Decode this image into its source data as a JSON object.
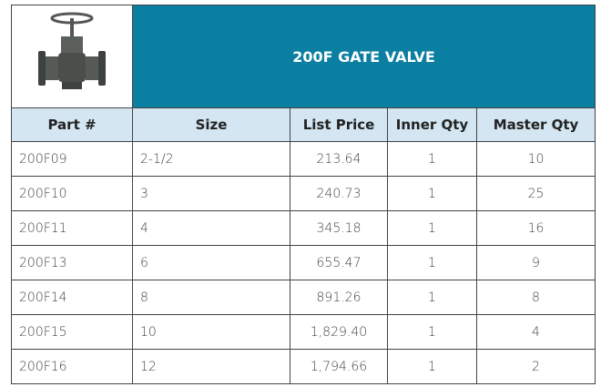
{
  "header": {
    "title": "200F GATE VALVE"
  },
  "table": {
    "columns": [
      "Part #",
      "Size",
      "List Price",
      "Inner Qty",
      "Master Qty"
    ],
    "rows": [
      [
        "200F09",
        "2-1/2",
        "213.64",
        "1",
        "10"
      ],
      [
        "200F10",
        "3",
        "240.73",
        "1",
        "25"
      ],
      [
        "200F11",
        "4",
        "345.18",
        "1",
        "16"
      ],
      [
        "200F13",
        "6",
        "655.47",
        "1",
        "9"
      ],
      [
        "200F14",
        "8",
        "891.26",
        "1",
        "8"
      ],
      [
        "200F15",
        "10",
        "1,829.40",
        "1",
        "4"
      ],
      [
        "200F16",
        "12",
        "1,794.66",
        "1",
        "2"
      ]
    ]
  }
}
